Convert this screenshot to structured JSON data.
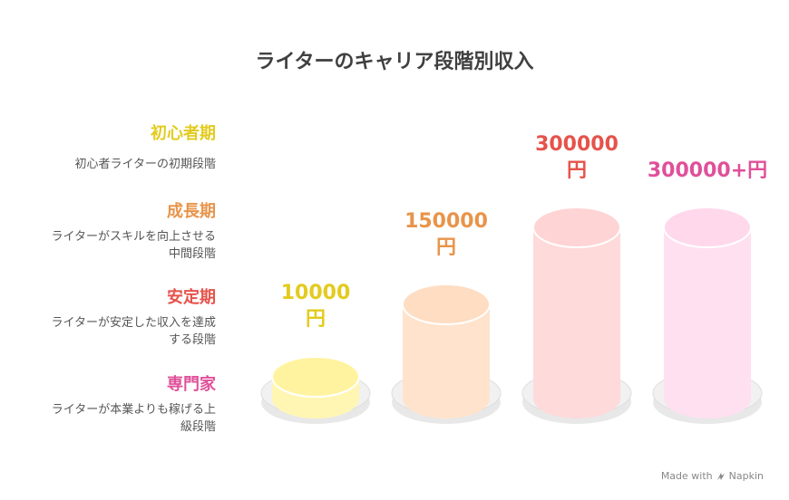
{
  "title": "ライターのキャリア段階別収入",
  "stages": [
    {
      "heading": "初心者期",
      "desc_lines": [
        "初心者ライターの初期段階"
      ],
      "value_lines": [
        "10000",
        "円"
      ],
      "color": "#E3CB1E",
      "fill": "#FFF6B4",
      "top_fill": "#FFF3A0"
    },
    {
      "heading": "成長期",
      "desc_lines": [
        "ライターがスキルを向上させる",
        "中間段階"
      ],
      "value_lines": [
        "150000",
        "円"
      ],
      "color": "#E8944A",
      "fill": "#FFE3CC",
      "top_fill": "#FFDDC2"
    },
    {
      "heading": "安定期",
      "desc_lines": [
        "ライターが安定した収入を達成",
        "する段階"
      ],
      "value_lines": [
        "300000",
        "円"
      ],
      "color": "#E5534B",
      "fill": "#FFDADA",
      "top_fill": "#FFD4D4"
    },
    {
      "heading": "専門家",
      "desc_lines": [
        "ライターが本業よりも稼げる上",
        "級段階"
      ],
      "value_lines": [
        "300000+円"
      ],
      "color": "#E0509A",
      "fill": "#FFE0F0",
      "top_fill": "#FFD8EC"
    }
  ],
  "footer": {
    "made_with": "Made with",
    "brand": "Napkin"
  }
}
